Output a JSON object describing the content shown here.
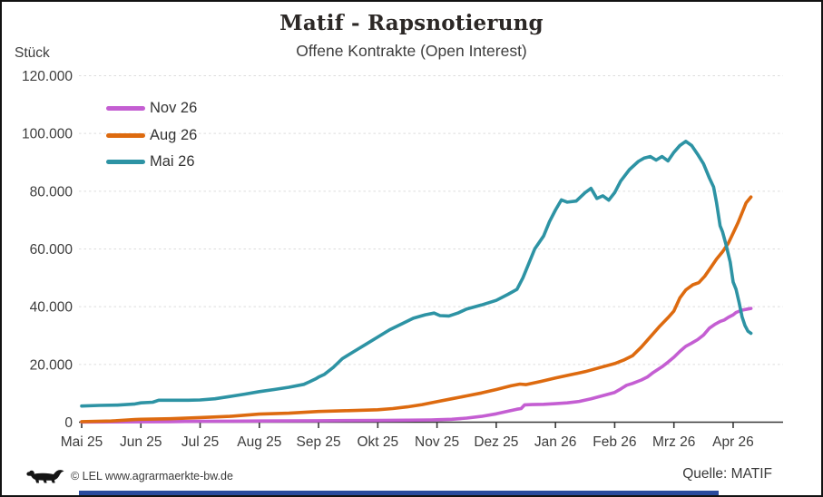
{
  "header": {
    "title": "Matif - Rapsnotierung",
    "subtitle": "Offene Kontrakte (Open Interest)"
  },
  "footer": {
    "copyright": "© LEL www.agrarmaerkte-bw.de",
    "source": "Quelle: MATIF"
  },
  "colors": {
    "grid": "#dcdcdc",
    "axis": "#383838",
    "text": "#3c3c3c",
    "bottom_bar": "#2a4a9d",
    "series_nov26": "#c45ed2",
    "series_aug26": "#dd6a0f",
    "series_mai26": "#2d93a4"
  },
  "chart_data": {
    "type": "line",
    "title": "Matif - Rapsnotierung",
    "subtitle": "Offene Kontrakte (Open Interest)",
    "ylabel": "Stück",
    "grid": "horizontal-dashed",
    "legend_position": "top-left-inside",
    "x_axis": {
      "unit": "months since Mai 25",
      "tick_labels": [
        "Mai 25",
        "Jun 25",
        "Jul 25",
        "Aug 25",
        "Sep 25",
        "Okt 25",
        "Nov 25",
        "Dez 25",
        "Jan 26",
        "Feb 26",
        "Mrz 26",
        "Apr 26"
      ],
      "min": 0,
      "max": 11.85
    },
    "y_axis": {
      "min": 0,
      "max": 120000,
      "tick_step": 20000,
      "tick_labels": [
        "0",
        "20.000",
        "40.000",
        "60.000",
        "80.000",
        "100.000",
        "120.000"
      ]
    },
    "series": [
      {
        "name": "Nov 26",
        "color": "#c45ed2",
        "points": [
          [
            0.0,
            50
          ],
          [
            0.5,
            80
          ],
          [
            1.0,
            120
          ],
          [
            1.5,
            200
          ],
          [
            2.0,
            300
          ],
          [
            2.5,
            350
          ],
          [
            3.0,
            400
          ],
          [
            3.5,
            450
          ],
          [
            4.0,
            500
          ],
          [
            4.5,
            550
          ],
          [
            5.0,
            600
          ],
          [
            5.5,
            700
          ],
          [
            5.9,
            800
          ],
          [
            6.0,
            850
          ],
          [
            6.25,
            1000
          ],
          [
            6.5,
            1400
          ],
          [
            6.75,
            2000
          ],
          [
            7.0,
            2900
          ],
          [
            7.2,
            3800
          ],
          [
            7.35,
            4500
          ],
          [
            7.42,
            4700
          ],
          [
            7.48,
            6000
          ],
          [
            7.6,
            6100
          ],
          [
            7.8,
            6200
          ],
          [
            8.0,
            6400
          ],
          [
            8.2,
            6700
          ],
          [
            8.4,
            7200
          ],
          [
            8.6,
            8100
          ],
          [
            8.8,
            9200
          ],
          [
            9.0,
            10300
          ],
          [
            9.1,
            11500
          ],
          [
            9.2,
            12800
          ],
          [
            9.3,
            13400
          ],
          [
            9.45,
            14600
          ],
          [
            9.55,
            15600
          ],
          [
            9.65,
            17200
          ],
          [
            9.8,
            19200
          ],
          [
            9.9,
            20800
          ],
          [
            10.0,
            22500
          ],
          [
            10.1,
            24500
          ],
          [
            10.2,
            26300
          ],
          [
            10.3,
            27400
          ],
          [
            10.4,
            28600
          ],
          [
            10.5,
            30200
          ],
          [
            10.6,
            32600
          ],
          [
            10.7,
            34000
          ],
          [
            10.78,
            34900
          ],
          [
            10.85,
            35400
          ],
          [
            10.92,
            36300
          ],
          [
            11.0,
            37200
          ],
          [
            11.05,
            38000
          ],
          [
            11.15,
            38800
          ],
          [
            11.25,
            39200
          ],
          [
            11.3,
            39400
          ]
        ]
      },
      {
        "name": "Aug 26",
        "color": "#dd6a0f",
        "points": [
          [
            0.0,
            200
          ],
          [
            0.5,
            400
          ],
          [
            0.9,
            900
          ],
          [
            1.0,
            1000
          ],
          [
            1.5,
            1200
          ],
          [
            2.0,
            1600
          ],
          [
            2.5,
            2000
          ],
          [
            3.0,
            2800
          ],
          [
            3.5,
            3100
          ],
          [
            4.0,
            3700
          ],
          [
            4.5,
            4000
          ],
          [
            5.0,
            4300
          ],
          [
            5.25,
            4700
          ],
          [
            5.5,
            5300
          ],
          [
            5.75,
            6100
          ],
          [
            6.0,
            7100
          ],
          [
            6.25,
            8100
          ],
          [
            6.5,
            9100
          ],
          [
            6.75,
            10100
          ],
          [
            7.0,
            11300
          ],
          [
            7.25,
            12600
          ],
          [
            7.4,
            13200
          ],
          [
            7.5,
            13000
          ],
          [
            7.75,
            14100
          ],
          [
            8.0,
            15300
          ],
          [
            8.25,
            16400
          ],
          [
            8.5,
            17500
          ],
          [
            8.75,
            18900
          ],
          [
            9.0,
            20300
          ],
          [
            9.15,
            21500
          ],
          [
            9.3,
            23000
          ],
          [
            9.45,
            26000
          ],
          [
            9.6,
            29500
          ],
          [
            9.75,
            33000
          ],
          [
            9.9,
            36200
          ],
          [
            10.0,
            38500
          ],
          [
            10.1,
            43000
          ],
          [
            10.2,
            45800
          ],
          [
            10.32,
            47600
          ],
          [
            10.42,
            48300
          ],
          [
            10.52,
            50500
          ],
          [
            10.62,
            53500
          ],
          [
            10.72,
            56500
          ],
          [
            10.82,
            59000
          ],
          [
            10.92,
            62000
          ],
          [
            11.0,
            65500
          ],
          [
            11.08,
            69000
          ],
          [
            11.15,
            72500
          ],
          [
            11.22,
            76000
          ],
          [
            11.3,
            78000
          ]
        ]
      },
      {
        "name": "Mai 26",
        "color": "#2d93a4",
        "points": [
          [
            0.0,
            5600
          ],
          [
            0.3,
            5800
          ],
          [
            0.6,
            5900
          ],
          [
            0.9,
            6300
          ],
          [
            1.0,
            6700
          ],
          [
            1.2,
            6900
          ],
          [
            1.3,
            7600
          ],
          [
            1.5,
            7600
          ],
          [
            1.8,
            7600
          ],
          [
            2.0,
            7700
          ],
          [
            2.25,
            8100
          ],
          [
            2.5,
            8900
          ],
          [
            2.75,
            9700
          ],
          [
            3.0,
            10600
          ],
          [
            3.25,
            11300
          ],
          [
            3.5,
            12100
          ],
          [
            3.75,
            13100
          ],
          [
            3.85,
            14000
          ],
          [
            3.95,
            15000
          ],
          [
            4.0,
            15600
          ],
          [
            4.1,
            16600
          ],
          [
            4.25,
            19000
          ],
          [
            4.4,
            22000
          ],
          [
            4.6,
            24500
          ],
          [
            4.8,
            27000
          ],
          [
            5.0,
            29500
          ],
          [
            5.2,
            32000
          ],
          [
            5.4,
            34000
          ],
          [
            5.6,
            36000
          ],
          [
            5.8,
            37200
          ],
          [
            5.95,
            37800
          ],
          [
            6.05,
            36900
          ],
          [
            6.2,
            36800
          ],
          [
            6.35,
            37800
          ],
          [
            6.5,
            39200
          ],
          [
            6.75,
            40600
          ],
          [
            7.0,
            42200
          ],
          [
            7.2,
            44300
          ],
          [
            7.35,
            46000
          ],
          [
            7.45,
            50000
          ],
          [
            7.55,
            55000
          ],
          [
            7.65,
            60000
          ],
          [
            7.8,
            64500
          ],
          [
            7.9,
            69500
          ],
          [
            8.0,
            73500
          ],
          [
            8.1,
            77000
          ],
          [
            8.2,
            76200
          ],
          [
            8.35,
            76600
          ],
          [
            8.5,
            79500
          ],
          [
            8.6,
            81000
          ],
          [
            8.7,
            77500
          ],
          [
            8.8,
            78400
          ],
          [
            8.9,
            76900
          ],
          [
            9.0,
            79500
          ],
          [
            9.1,
            83500
          ],
          [
            9.25,
            87500
          ],
          [
            9.4,
            90300
          ],
          [
            9.5,
            91500
          ],
          [
            9.6,
            92000
          ],
          [
            9.7,
            90800
          ],
          [
            9.8,
            92000
          ],
          [
            9.9,
            90500
          ],
          [
            10.0,
            93500
          ],
          [
            10.1,
            95800
          ],
          [
            10.2,
            97300
          ],
          [
            10.3,
            95800
          ],
          [
            10.4,
            92800
          ],
          [
            10.5,
            89500
          ],
          [
            10.6,
            84500
          ],
          [
            10.67,
            81500
          ],
          [
            10.72,
            76000
          ],
          [
            10.78,
            68000
          ],
          [
            10.82,
            66000
          ],
          [
            10.88,
            61500
          ],
          [
            10.95,
            55500
          ],
          [
            11.0,
            48500
          ],
          [
            11.05,
            46000
          ],
          [
            11.1,
            41500
          ],
          [
            11.15,
            36500
          ],
          [
            11.2,
            33500
          ],
          [
            11.25,
            31500
          ],
          [
            11.3,
            30800
          ]
        ]
      }
    ]
  }
}
